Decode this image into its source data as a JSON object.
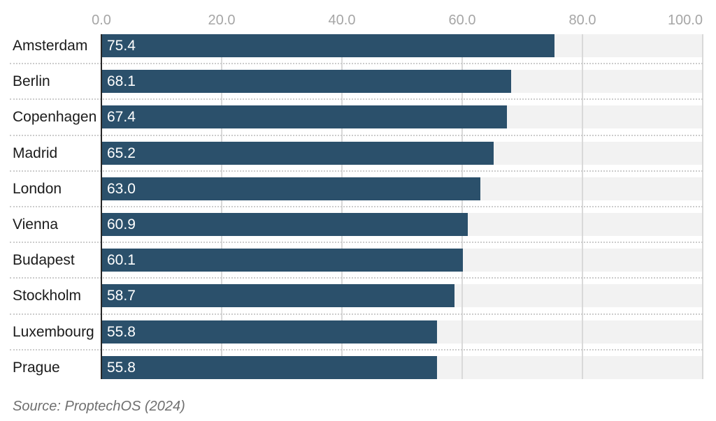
{
  "chart_data": {
    "type": "bar",
    "orientation": "horizontal",
    "title": "",
    "categories": [
      "Amsterdam",
      "Berlin",
      "Copenhagen",
      "Madrid",
      "London",
      "Vienna",
      "Budapest",
      "Stockholm",
      "Luxembourg",
      "Prague"
    ],
    "values": [
      75.4,
      68.1,
      67.4,
      65.2,
      63.0,
      60.9,
      60.1,
      58.7,
      55.8,
      55.8
    ],
    "value_labels": [
      "75.4",
      "68.1",
      "67.4",
      "65.2",
      "63.0",
      "60.9",
      "60.1",
      "58.7",
      "55.8",
      "55.8"
    ],
    "x_ticks": [
      "0.0",
      "20.0",
      "40.0",
      "60.0",
      "80.0",
      "100.0"
    ],
    "xlim": [
      0,
      100
    ],
    "grid": true,
    "legend": "none",
    "source": "Source: ProptechOS (2024)",
    "colors": {
      "bar": "#2b506b",
      "track": "#f2f2f2",
      "gridline": "#d9d9d9",
      "axis_line": "#262626",
      "tick_label": "#a6a6a6",
      "category_label": "#1b1b1b",
      "value_label": "#ffffff",
      "separator": "#cccccc",
      "source_text": "#6f6f6f",
      "background": "#ffffff"
    }
  }
}
